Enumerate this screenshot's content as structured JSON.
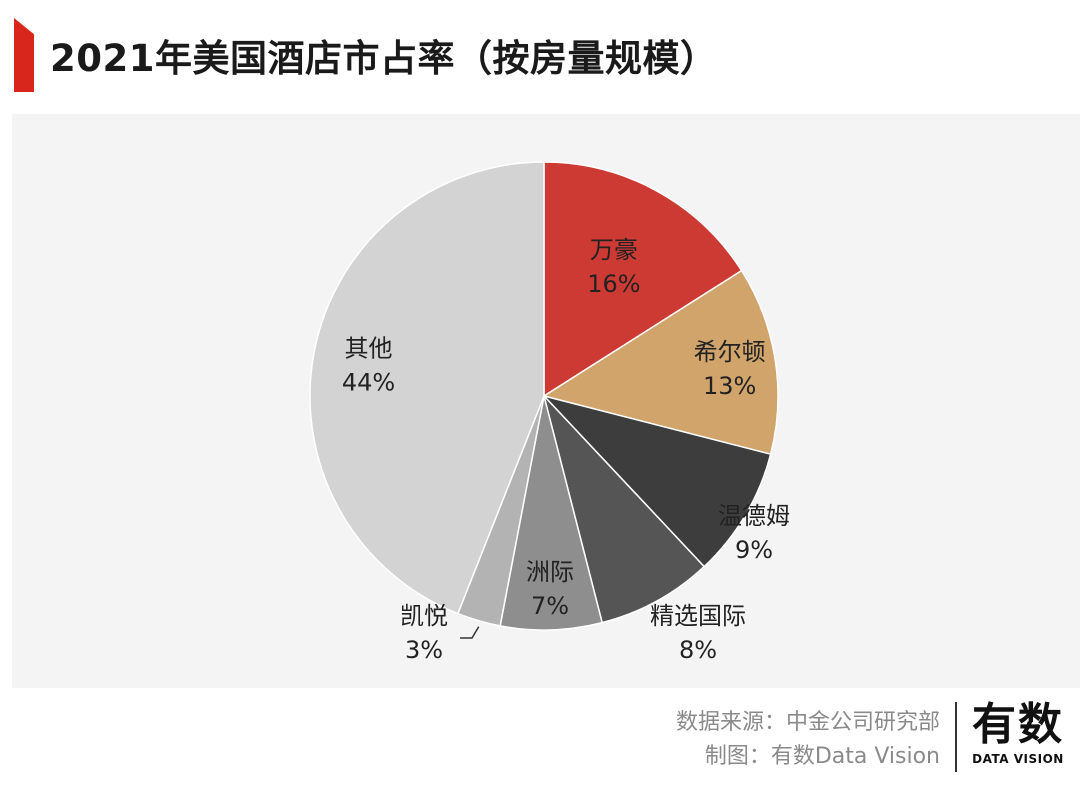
{
  "header": {
    "title": "2021年美国酒店市占率（按房量规模）",
    "accent_color": "#d9261c"
  },
  "chart_data": {
    "type": "pie",
    "title": "2021年美国酒店市占率（按房量规模）",
    "start_angle": "12 o'clock",
    "direction": "clockwise",
    "slices": [
      {
        "name": "万豪",
        "value": 16,
        "label": "16%",
        "color": "#cc3a33"
      },
      {
        "name": "希尔顿",
        "value": 13,
        "label": "13%",
        "color": "#d0a46b"
      },
      {
        "name": "温德姆",
        "value": 9,
        "label": "9%",
        "color": "#3d3d3d"
      },
      {
        "name": "精选国际",
        "value": 8,
        "label": "8%",
        "color": "#555555"
      },
      {
        "name": "洲际",
        "value": 7,
        "label": "7%",
        "color": "#8e8e8e"
      },
      {
        "name": "凯悦",
        "value": 3,
        "label": "3%",
        "color": "#b3b3b3"
      },
      {
        "name": "其他",
        "value": 44,
        "label": "44%",
        "color": "#d3d3d3"
      }
    ]
  },
  "footer": {
    "source": "数据来源：中金公司研究部",
    "credit": "制图：有数Data Vision"
  },
  "logo": {
    "main": "有数",
    "sub": "DATA VISION"
  }
}
